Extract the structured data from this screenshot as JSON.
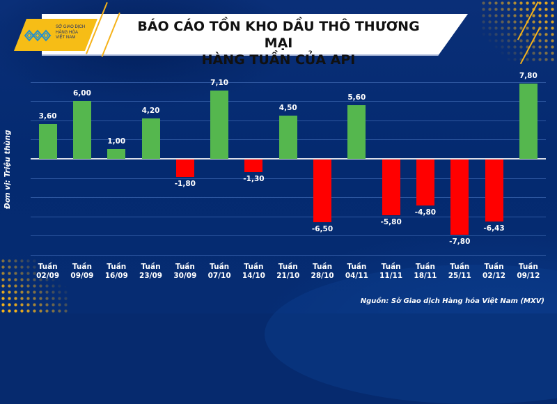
{
  "header": {
    "title_line1": "BÁO CÁO TỒN KHO DẦU THÔ THƯƠNG MẠI",
    "title_line2": "HÀNG TUẦN CỦA API",
    "logo_lines": [
      "SỞ GIAO DỊCH",
      "HÀNG HÓA",
      "VIỆT NAM"
    ]
  },
  "y_axis_label": "Đơn vị: Triệu thùng",
  "source": "Nguồn: Sở Giao dịch Hàng hóa Việt Nam (MXV)",
  "colors": {
    "positive": "#55b74e",
    "negative": "#ff0000",
    "background": "#062a6e",
    "accent": "#f6bd16"
  },
  "chart_data": {
    "type": "bar",
    "title": "BÁO CÁO TỒN KHO DẦU THÔ THƯƠNG MẠI HÀNG TUẦN CỦA API",
    "xlabel": "",
    "ylabel": "Đơn vị: Triệu thùng",
    "categories": [
      "Tuần 02/09",
      "Tuần 09/09",
      "Tuần 16/09",
      "Tuần 23/09",
      "Tuần 30/09",
      "Tuần 07/10",
      "Tuần 14/10",
      "Tuần 21/10",
      "Tuần 28/10",
      "Tuần 04/11",
      "Tuần 11/11",
      "Tuần 18/11",
      "Tuần 25/11",
      "Tuần 02/12",
      "Tuần 09/12"
    ],
    "tick_top": [
      "Tuần",
      "Tuần",
      "Tuần",
      "Tuần",
      "Tuần",
      "Tuần",
      "Tuần",
      "Tuần",
      "Tuần",
      "Tuần",
      "Tuần",
      "Tuần",
      "Tuần",
      "Tuần",
      "Tuần"
    ],
    "tick_bottom": [
      "02/09",
      "09/09",
      "16/09",
      "23/09",
      "30/09",
      "07/10",
      "14/10",
      "21/10",
      "28/10",
      "04/11",
      "11/11",
      "18/11",
      "25/11",
      "02/12",
      "09/12"
    ],
    "values": [
      3.6,
      6.0,
      1.0,
      4.2,
      -1.8,
      7.1,
      -1.3,
      4.5,
      -6.5,
      5.6,
      -5.8,
      -4.8,
      -7.8,
      -6.43,
      7.8
    ],
    "labels": [
      "3,60",
      "6,00",
      "1,00",
      "4,20",
      "-1,80",
      "7,10",
      "-1,30",
      "4,50",
      "-6,50",
      "5,60",
      "-5,80",
      "-4,80",
      "-7,80",
      "-6,43",
      "7,80"
    ],
    "ylim": [
      -10,
      8
    ],
    "grid": true,
    "gridline_step": 2,
    "legend": null
  }
}
